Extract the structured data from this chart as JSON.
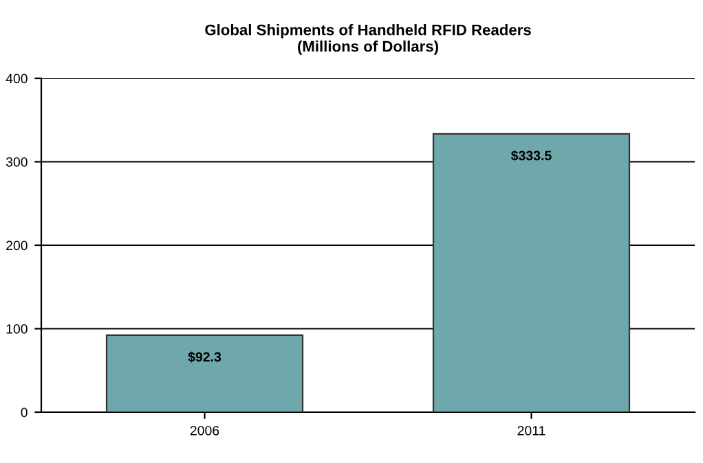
{
  "chart_data": {
    "type": "bar",
    "title": "Global Shipments of Handheld RFID Readers\n(Millions of Dollars)",
    "categories": [
      "2006",
      "2011"
    ],
    "values": [
      92.3,
      333.5
    ],
    "value_labels": [
      "$92.3",
      "$333.5"
    ],
    "color": "#6fa8ac",
    "ylim": [
      0,
      400
    ],
    "yticks": [
      0,
      100,
      200,
      300,
      400
    ],
    "grid": "y"
  }
}
